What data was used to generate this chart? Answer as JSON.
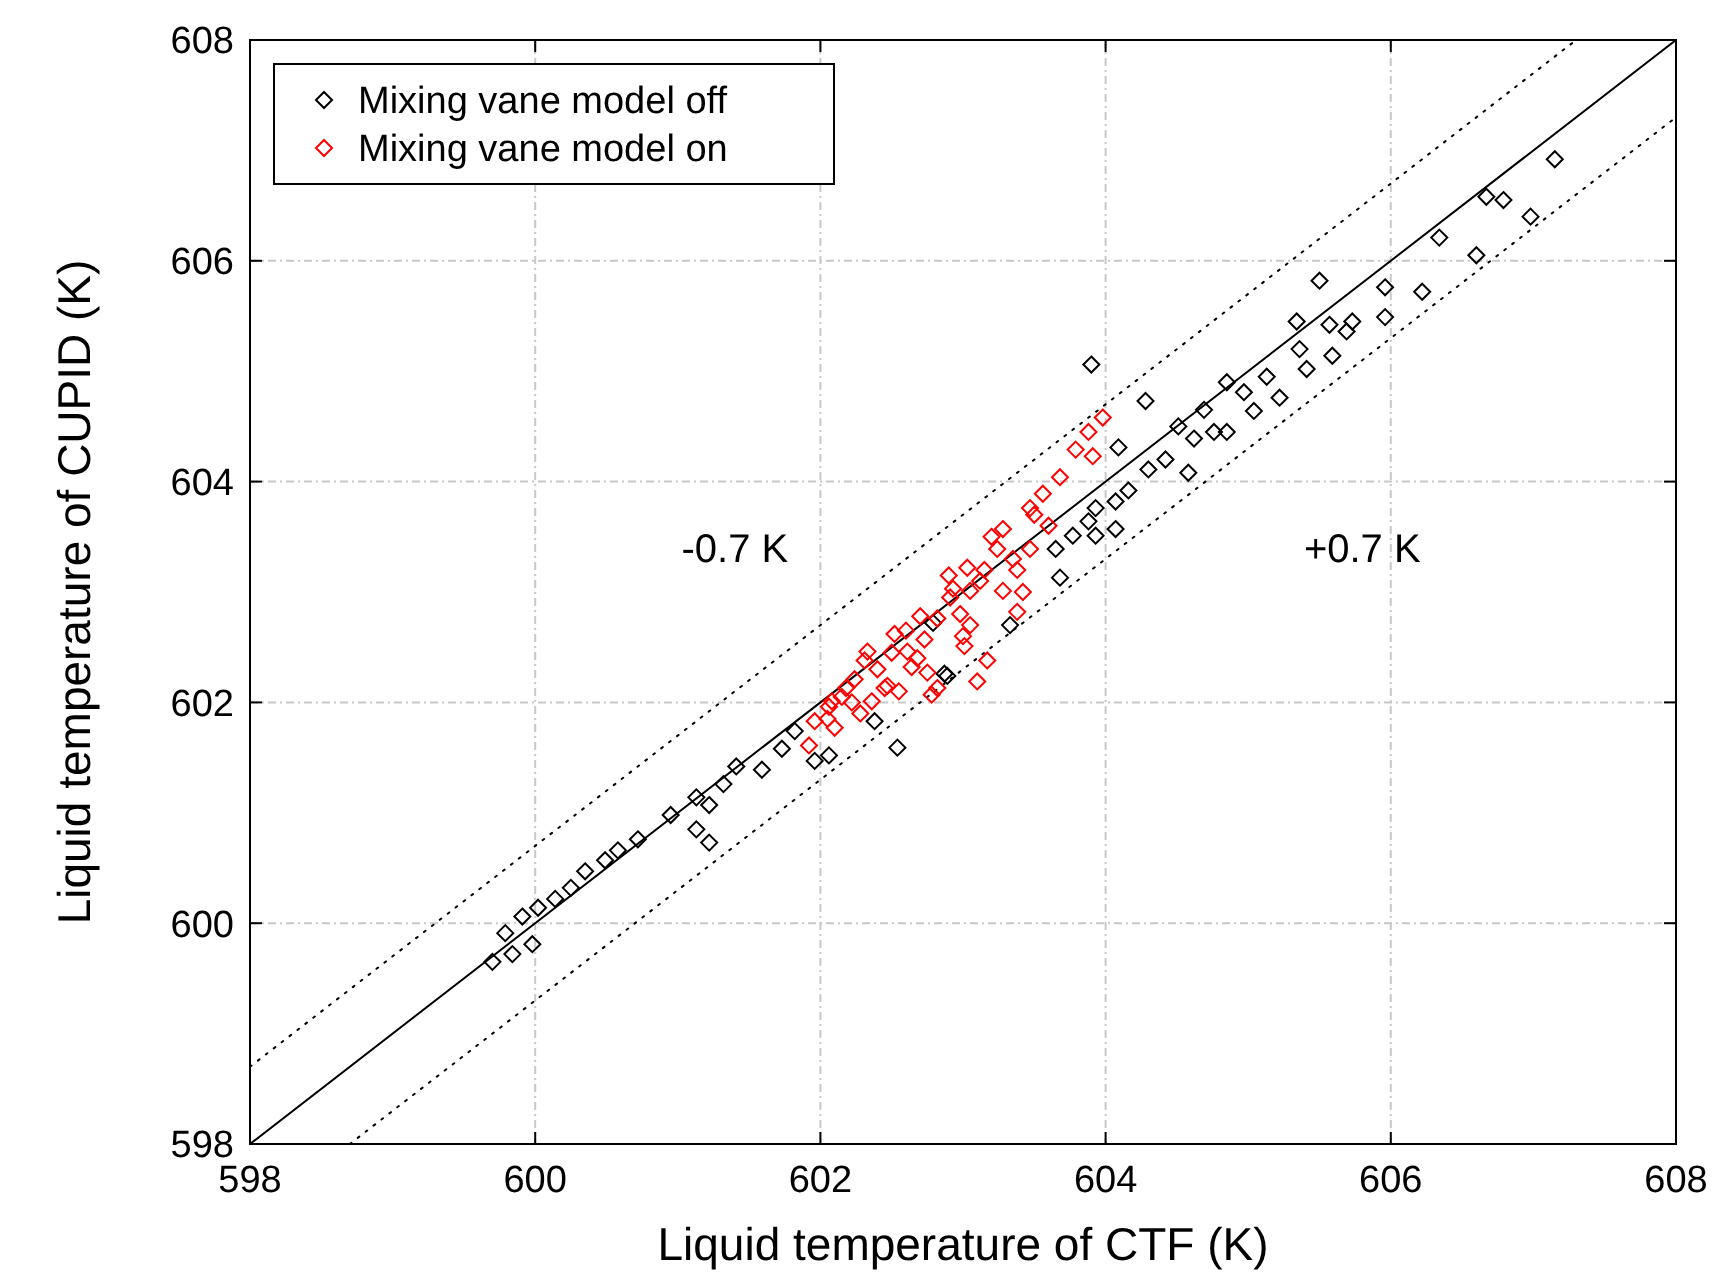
{
  "chart_data": {
    "type": "scatter",
    "xlabel": "Liquid temperature of CTF (K)",
    "ylabel": "Liquid temperature of CUPID (K)",
    "xlim": [
      598,
      608
    ],
    "ylim": [
      598,
      608
    ],
    "xticks": [
      598,
      600,
      602,
      604,
      606,
      608
    ],
    "yticks": [
      598,
      600,
      602,
      604,
      606,
      608
    ],
    "grid": true,
    "legend": "top left",
    "annotations": [
      "-0.7 K",
      "+0.7 K"
    ],
    "series": [
      {
        "type": "line",
        "color": "#000000",
        "line_style": "solid",
        "x": [
          598,
          608
        ],
        "values": [
          598,
          608
        ]
      },
      {
        "type": "line",
        "color": "#000000",
        "line_style": "dotted",
        "x": [
          598,
          607.3
        ],
        "values": [
          598.7,
          608
        ]
      },
      {
        "type": "line",
        "color": "#000000",
        "line_style": "dotted",
        "x": [
          598.7,
          608
        ],
        "values": [
          598,
          607.3
        ]
      },
      {
        "name": "Mixing vane model off",
        "color": "#000000",
        "marker": "diamond",
        "x": [
          599.7,
          599.84,
          599.79,
          599.91,
          599.98,
          600.02,
          600.14,
          600.25,
          600.35,
          600.49,
          600.58,
          600.72,
          600.95,
          601.13,
          601.22,
          601.13,
          601.22,
          601.32,
          601.41,
          601.59,
          601.73,
          601.82,
          601.96,
          602.06,
          602.38,
          602.54,
          602.79,
          602.89,
          603.9,
          604.28,
          604.09,
          604.51,
          604.69,
          604.85,
          604.97,
          605.13,
          605.34,
          605.5,
          605.57,
          605.73,
          605.96,
          605.96,
          606.22,
          606.34,
          606.6,
          606.67,
          606.79,
          606.98,
          607.15,
          605.22,
          605.36,
          605.59,
          605.41,
          605.04,
          604.76,
          604.62,
          604.42,
          604.3,
          604.16,
          604.07,
          603.93,
          603.88,
          604.07,
          603.77,
          603.93,
          603.65,
          603.68,
          603.33,
          602.87,
          604.58,
          604.85,
          605.69
        ],
        "values": [
          599.65,
          599.72,
          599.91,
          600.06,
          599.81,
          600.14,
          600.22,
          600.32,
          600.47,
          600.57,
          600.66,
          600.76,
          600.98,
          601.14,
          601.07,
          600.85,
          600.73,
          601.26,
          601.42,
          601.39,
          601.58,
          601.74,
          601.47,
          601.52,
          601.83,
          601.59,
          602.72,
          602.24,
          605.06,
          604.73,
          604.31,
          604.5,
          604.65,
          604.9,
          604.81,
          604.95,
          605.45,
          605.82,
          605.42,
          605.45,
          605.76,
          605.49,
          605.72,
          606.21,
          606.05,
          606.58,
          606.55,
          606.4,
          606.92,
          604.76,
          605.2,
          605.14,
          605.02,
          604.64,
          604.45,
          604.39,
          604.2,
          604.11,
          603.92,
          603.82,
          603.76,
          603.64,
          603.57,
          603.51,
          603.51,
          603.39,
          603.13,
          602.7,
          602.26,
          604.08,
          604.45,
          605.36
        ]
      },
      {
        "name": "Mixing vane model on",
        "color": "#ff0000",
        "marker": "diamond",
        "x": [
          603.2,
          603.35,
          603.12,
          602.98,
          602.6,
          602.4,
          602.22,
          602.05,
          603.5,
          603.6,
          602.9,
          602.68,
          603.42,
          603.0,
          602.55,
          602.28,
          603.98,
          603.88,
          603.79,
          603.91,
          603.68,
          603.56,
          603.47,
          603.28,
          603.24,
          603.47,
          603.15,
          603.38,
          603.05,
          603.28,
          602.91,
          603.38,
          602.82,
          603.05,
          602.73,
          603.01,
          603.17,
          602.5,
          602.64,
          602.31,
          602.45,
          603.1,
          602.82,
          602.18,
          602.08,
          602.36,
          602.78,
          603.03,
          602.7,
          602.52,
          602.33,
          602.24,
          602.15,
          602.06,
          601.96,
          601.92,
          602.1,
          602.47,
          602.75,
          602.93,
          602.61
        ],
        "values": [
          603.5,
          603.3,
          603.1,
          602.8,
          602.65,
          602.3,
          602.0,
          601.85,
          603.7,
          603.6,
          603.15,
          602.4,
          603.0,
          602.6,
          602.1,
          601.9,
          604.58,
          604.45,
          604.29,
          604.23,
          604.04,
          603.89,
          603.76,
          603.57,
          603.39,
          603.39,
          603.2,
          603.2,
          603.01,
          603.01,
          602.95,
          602.82,
          602.76,
          602.7,
          602.57,
          602.51,
          602.38,
          602.45,
          602.32,
          602.38,
          602.13,
          602.19,
          602.13,
          602.13,
          602.01,
          602.01,
          602.07,
          603.22,
          602.78,
          602.62,
          602.46,
          602.21,
          602.05,
          601.96,
          601.83,
          601.61,
          601.77,
          602.15,
          602.27,
          603.03,
          602.46
        ]
      }
    ]
  }
}
